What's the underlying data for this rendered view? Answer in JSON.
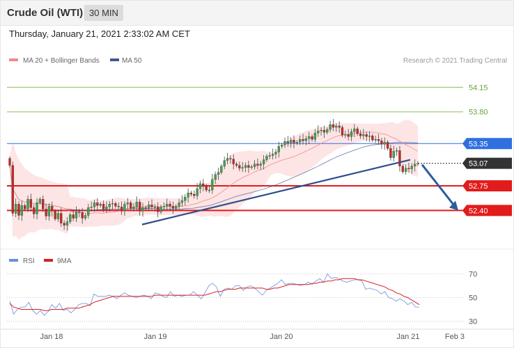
{
  "header": {
    "title": "Crude Oil (WTI)",
    "timeframe": "30 MIN"
  },
  "timestamp": "Thursday, January 21, 2021 2:33:02 AM CET",
  "legend": {
    "ma20_label": "MA 20 + Bollinger Bands",
    "ma50_label": "MA 50",
    "ma20_color": "#f08a8a",
    "ma50_color": "#3b5b8f"
  },
  "credit": "Research © 2021 Trading Central",
  "rsi_legend": {
    "rsi_label": "RSI",
    "ma9_label": "9MA",
    "rsi_color": "#6a8fd8",
    "ma9_color": "#d62020"
  },
  "chart_data": [
    {
      "type": "candlestick",
      "x_ticks": [
        "Jan 18",
        "Jan 19",
        "Jan 20",
        "Jan 21",
        "Feb 3"
      ],
      "ylim": [
        51.88,
        54.42
      ],
      "levels": [
        {
          "value": 54.15,
          "label": "54.15",
          "color": "#8cbf5a",
          "style": "resistance"
        },
        {
          "value": 53.8,
          "label": "53.80",
          "color": "#8cbf5a",
          "style": "resistance"
        },
        {
          "value": 53.35,
          "label": "53.35",
          "color": "#2f6fe0",
          "style": "pivot"
        },
        {
          "value": 53.07,
          "label": "53.07",
          "color": "#333333",
          "style": "last"
        },
        {
          "value": 52.75,
          "label": "52.75",
          "color": "#e21b1b",
          "style": "support"
        },
        {
          "value": 52.4,
          "label": "52.40",
          "color": "#e21b1b",
          "style": "support"
        }
      ],
      "trendline": {
        "from": [
          "Jan 19",
          52.2
        ],
        "to": [
          "Jan 21",
          53.12
        ]
      },
      "target_arrow": {
        "from": 53.07,
        "to": 52.4
      },
      "candles_close": [
        53.04,
        52.36,
        52.49,
        52.33,
        52.47,
        52.42,
        52.56,
        52.44,
        52.35,
        52.51,
        52.56,
        52.42,
        52.32,
        52.46,
        52.39,
        52.28,
        52.36,
        52.22,
        52.19,
        52.24,
        52.34,
        52.29,
        52.38,
        52.37,
        52.29,
        52.33,
        52.44,
        52.45,
        52.51,
        52.47,
        52.49,
        52.42,
        52.45,
        52.49,
        52.5,
        52.46,
        52.45,
        52.39,
        52.49,
        52.51,
        52.43,
        52.45,
        52.52,
        52.39,
        52.44,
        52.43,
        52.48,
        52.45,
        52.45,
        52.38,
        52.45,
        52.46,
        52.49,
        52.46,
        52.43,
        52.46,
        52.51,
        52.54,
        52.59,
        52.65,
        52.63,
        52.61,
        52.71,
        52.78,
        52.75,
        52.69,
        52.69,
        52.84,
        52.91,
        52.94,
        53.03,
        53.11,
        53.14,
        53.13,
        53.06,
        53.04,
        53.0,
        53.01,
        53.04,
        53.01,
        53.02,
        53.06,
        53.04,
        53.06,
        53.12,
        53.17,
        53.18,
        53.2,
        53.23,
        53.31,
        53.33,
        53.38,
        53.36,
        53.4,
        53.36,
        53.37,
        53.41,
        53.39,
        53.42,
        53.45,
        53.41,
        53.5,
        53.53,
        53.54,
        53.51,
        53.55,
        53.62,
        53.58,
        53.6,
        53.58,
        53.47,
        53.48,
        53.45,
        53.52,
        53.56,
        53.49,
        53.46,
        53.48,
        53.45,
        53.46,
        53.4,
        53.41,
        53.39,
        53.34,
        53.37,
        53.28,
        53.15,
        53.24,
        53.25,
        53.03,
        52.95,
        53.0,
        52.99,
        53.03,
        53.06,
        53.07
      ]
    },
    {
      "type": "line",
      "name": "RSI",
      "yticks": [
        70,
        50,
        30
      ],
      "ylim": [
        25,
        75
      ],
      "series": [
        {
          "name": "RSI",
          "values": [
            47,
            36,
            40,
            42,
            42,
            46,
            39,
            36,
            39,
            35,
            38,
            44,
            41,
            45,
            39,
            40,
            37,
            40,
            44,
            45,
            45,
            43,
            53,
            51,
            51,
            51,
            52,
            51,
            49,
            52,
            54,
            52,
            51,
            50,
            51,
            52,
            51,
            49,
            54,
            53,
            51,
            50,
            55,
            51,
            52,
            51,
            52,
            52,
            55,
            52,
            49,
            54,
            60,
            62,
            59,
            51,
            57,
            58,
            57,
            60,
            60,
            56,
            59,
            60,
            58,
            55,
            52,
            56,
            58,
            60,
            62,
            65,
            61,
            62,
            62,
            61,
            60,
            61,
            63,
            61,
            64,
            66,
            63,
            70,
            66,
            67,
            66,
            64,
            63,
            64,
            65,
            65,
            64,
            57,
            58,
            57,
            56,
            53,
            55,
            50,
            49,
            47,
            49,
            47,
            44,
            46,
            42,
            42
          ]
        },
        {
          "name": "9MA",
          "values": [
            45,
            42,
            41,
            40,
            40,
            40,
            40,
            40,
            40,
            39,
            39,
            40,
            40,
            40,
            40,
            41,
            41,
            41,
            41,
            42,
            43,
            44,
            46,
            47,
            48,
            49,
            50,
            51,
            51,
            51,
            51,
            51,
            51,
            51,
            51,
            51,
            51,
            51,
            52,
            52,
            52,
            52,
            52,
            52,
            52,
            52,
            52,
            52,
            52,
            52,
            52,
            52,
            53,
            54,
            55,
            55,
            56,
            57,
            57,
            57,
            58,
            58,
            58,
            58,
            58,
            58,
            58,
            57,
            57,
            58,
            58,
            59,
            60,
            61,
            61,
            61,
            61,
            61,
            61,
            62,
            62,
            63,
            63,
            64,
            64,
            65,
            65,
            66,
            66,
            66,
            66,
            65,
            65,
            64,
            63,
            62,
            61,
            60,
            59,
            57,
            56,
            54,
            53,
            51,
            50,
            48,
            46,
            44
          ]
        }
      ]
    }
  ]
}
